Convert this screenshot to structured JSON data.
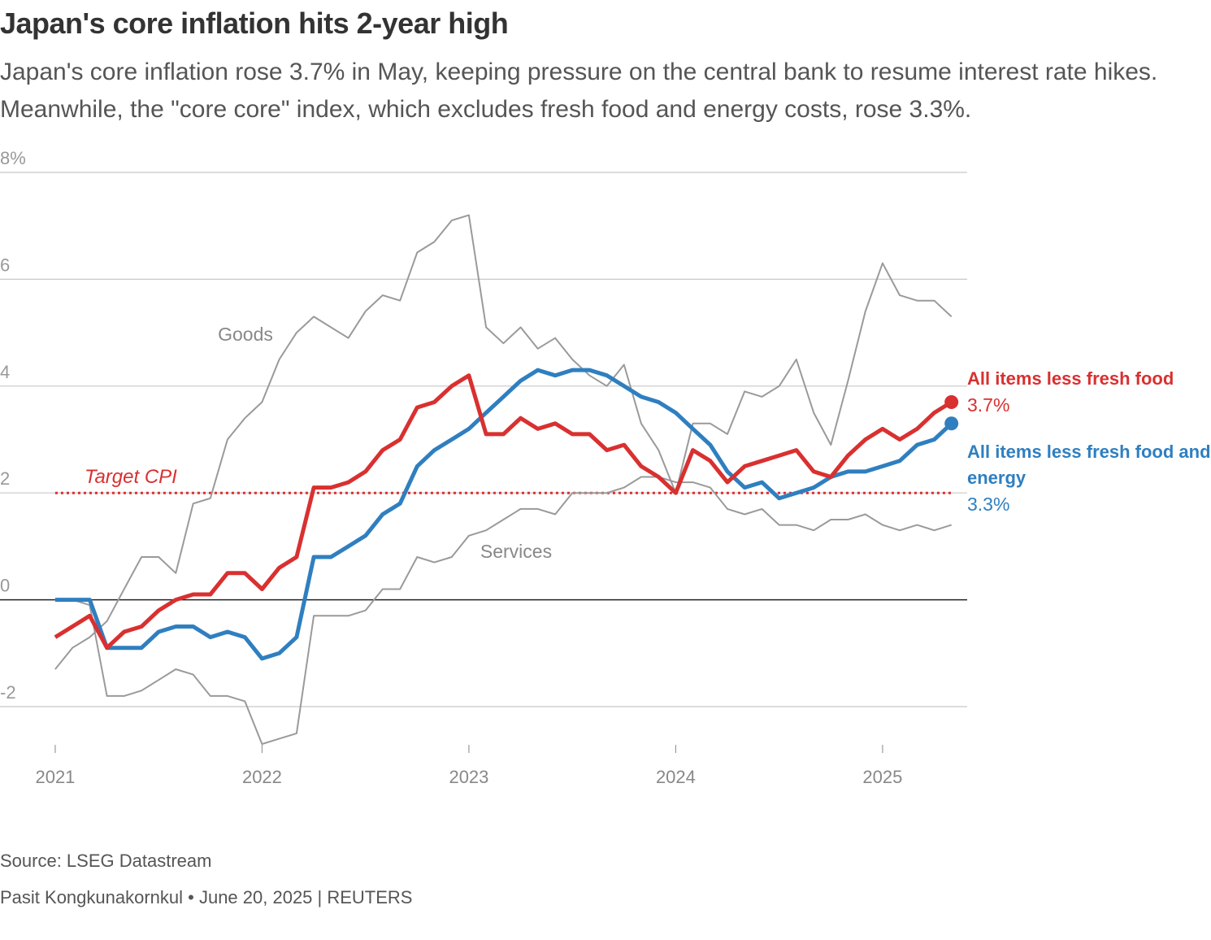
{
  "chart_data": {
    "type": "line",
    "title": "Japan's core inflation hits 2-year high",
    "subtitle": "Japan's core inflation rose 3.7% in May, keeping pressure on the central bank to resume interest rate hikes. Meanwhile, the \"core core\" index, which excludes fresh food and energy costs, rose 3.3%.",
    "source": "Source: LSEG Datastream",
    "credit": "Pasit Kongkunakornkul • June 20, 2025 | REUTERS",
    "x": [
      2021,
      2021.083,
      2021.167,
      2021.25,
      2021.333,
      2021.417,
      2021.5,
      2021.583,
      2021.667,
      2021.75,
      2021.833,
      2021.917,
      2022,
      2022.083,
      2022.167,
      2022.25,
      2022.333,
      2022.417,
      2022.5,
      2022.583,
      2022.667,
      2022.75,
      2022.833,
      2022.917,
      2023,
      2023.083,
      2023.167,
      2023.25,
      2023.333,
      2023.417,
      2023.5,
      2023.583,
      2023.667,
      2023.75,
      2023.833,
      2023.917,
      2024,
      2024.083,
      2024.167,
      2024.25,
      2024.333,
      2024.417,
      2024.5,
      2024.583,
      2024.667,
      2024.75,
      2024.833,
      2024.917,
      2025,
      2025.083,
      2025.167,
      2025.25,
      2025.333
    ],
    "series": [
      {
        "name": "Goods",
        "color": "#9a9a9a",
        "values": [
          -1.3,
          -0.9,
          -0.7,
          -0.4,
          0.2,
          0.8,
          0.8,
          0.5,
          1.8,
          1.9,
          3.0,
          3.4,
          3.7,
          4.5,
          5.0,
          5.3,
          5.1,
          4.9,
          5.4,
          5.7,
          5.6,
          6.5,
          6.7,
          7.1,
          7.2,
          5.1,
          4.8,
          5.1,
          4.7,
          4.9,
          4.5,
          4.2,
          4.0,
          4.4,
          3.3,
          2.8,
          2.0,
          3.3,
          3.3,
          3.1,
          3.9,
          3.8,
          4.0,
          4.5,
          3.5,
          2.9,
          4.1,
          5.4,
          6.3,
          5.7,
          5.6,
          5.6,
          5.3
        ]
      },
      {
        "name": "Services",
        "color": "#9a9a9a",
        "values": [
          0,
          0,
          -0.1,
          -1.8,
          -1.8,
          -1.7,
          -1.5,
          -1.3,
          -1.4,
          -1.8,
          -1.8,
          -1.9,
          -2.7,
          -2.6,
          -2.5,
          -0.3,
          -0.3,
          -0.3,
          -0.2,
          0.2,
          0.2,
          0.8,
          0.7,
          0.8,
          1.2,
          1.3,
          1.5,
          1.7,
          1.7,
          1.6,
          2.0,
          2.0,
          2.0,
          2.1,
          2.3,
          2.3,
          2.2,
          2.2,
          2.1,
          1.7,
          1.6,
          1.7,
          1.4,
          1.4,
          1.3,
          1.5,
          1.5,
          1.6,
          1.4,
          1.3,
          1.4,
          1.3,
          1.4
        ]
      },
      {
        "name": "All items less fresh food and energy",
        "color": "#2f7fc0",
        "values": [
          0,
          0,
          0,
          -0.9,
          -0.9,
          -0.9,
          -0.6,
          -0.5,
          -0.5,
          -0.7,
          -0.6,
          -0.7,
          -1.1,
          -1.0,
          -0.7,
          0.8,
          0.8,
          1.0,
          1.2,
          1.6,
          1.8,
          2.5,
          2.8,
          3.0,
          3.2,
          3.5,
          3.8,
          4.1,
          4.3,
          4.2,
          4.3,
          4.3,
          4.2,
          4.0,
          3.8,
          3.7,
          3.5,
          3.2,
          2.9,
          2.4,
          2.1,
          2.2,
          1.9,
          2.0,
          2.1,
          2.3,
          2.4,
          2.4,
          2.5,
          2.6,
          2.9,
          3.0,
          3.3
        ],
        "value_labels": [
          null,
          null,
          null,
          null,
          null,
          null,
          null,
          null,
          null,
          null,
          null,
          null,
          null,
          null,
          null,
          null,
          null,
          null,
          null,
          null,
          null,
          null,
          null,
          null,
          null,
          null,
          null,
          null,
          null,
          null,
          null,
          null,
          null,
          null,
          null,
          null,
          null,
          null,
          null,
          null,
          null,
          null,
          null,
          null,
          null,
          null,
          null,
          null,
          null,
          null,
          null,
          null,
          "3.3%"
        ]
      },
      {
        "name": "All items less fresh food",
        "color": "#d93030",
        "values": [
          -0.7,
          -0.5,
          -0.3,
          -0.9,
          -0.6,
          -0.5,
          -0.2,
          0.0,
          0.1,
          0.1,
          0.5,
          0.5,
          0.2,
          0.6,
          0.8,
          2.1,
          2.1,
          2.2,
          2.4,
          2.8,
          3.0,
          3.6,
          3.7,
          4.0,
          4.2,
          3.1,
          3.1,
          3.4,
          3.2,
          3.3,
          3.1,
          3.1,
          2.8,
          2.9,
          2.5,
          2.3,
          2.0,
          2.8,
          2.6,
          2.2,
          2.5,
          2.6,
          2.7,
          2.8,
          2.4,
          2.3,
          2.7,
          3.0,
          3.2,
          3.0,
          3.2,
          3.5,
          3.7
        ],
        "value_labels": [
          null,
          null,
          null,
          null,
          null,
          null,
          null,
          null,
          null,
          null,
          null,
          null,
          null,
          null,
          null,
          null,
          null,
          null,
          null,
          null,
          null,
          null,
          null,
          null,
          null,
          null,
          null,
          null,
          null,
          null,
          null,
          null,
          null,
          null,
          null,
          null,
          null,
          null,
          null,
          null,
          null,
          null,
          null,
          null,
          null,
          null,
          null,
          null,
          null,
          null,
          null,
          null,
          "3.7%"
        ]
      }
    ],
    "target": {
      "label": "Target CPI",
      "value": 2,
      "color": "#d93030"
    },
    "xlim": [
      2020.733,
      2025.409
    ],
    "ylim": [
      -3,
      8
    ],
    "xticks": [
      2021,
      2022,
      2023,
      2024,
      2025
    ],
    "yticks": [
      {
        "value": 8,
        "label": "8%"
      },
      6,
      4,
      2,
      0,
      -2
    ],
    "grid": true
  }
}
